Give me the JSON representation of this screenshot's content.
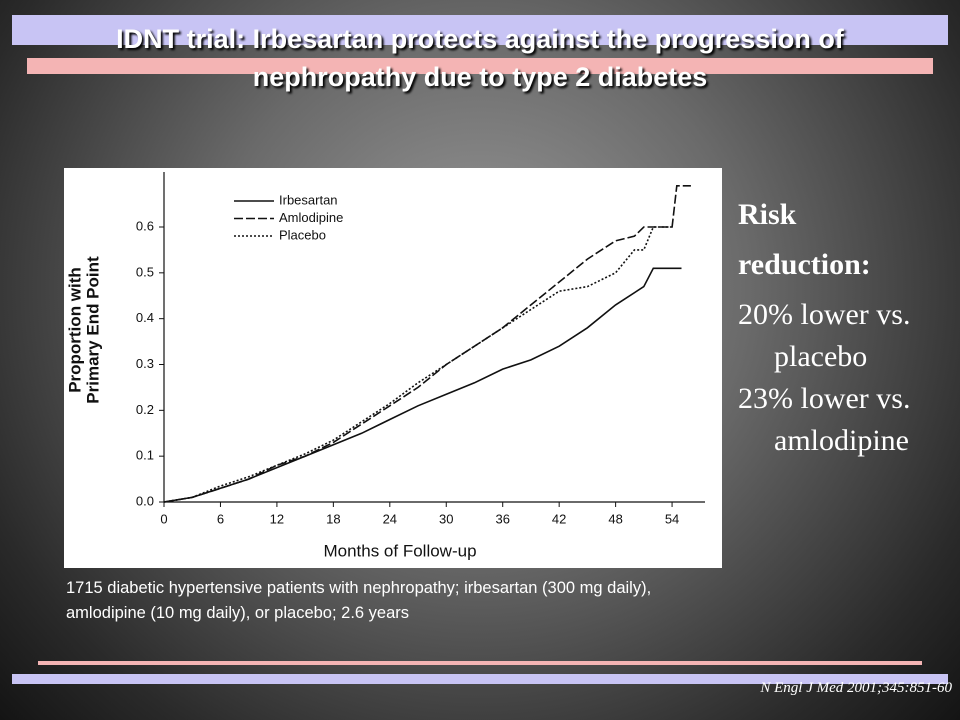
{
  "slide": {
    "title": "IDNT trial: Irbesartan protects against the progression of nephropathy due to type 2 diabetes",
    "caption": "1715 diabetic hypertensive patients with  nephropathy; irbesartan (300 mg daily), amlodipine  (10 mg daily), or placebo; 2.6 years",
    "side_heading": [
      "Risk",
      "reduction:"
    ],
    "side_points": [
      "20% lower vs. placebo",
      "23% lower vs. amlodipine"
    ],
    "citation": "N Engl J Med 2001;345:851-60"
  },
  "chart_data": {
    "type": "line",
    "xlabel": "Months of Follow-up",
    "ylabel": [
      "Proportion with",
      "Primary End Point"
    ],
    "xlim": [
      0,
      57.5
    ],
    "ylim": [
      0,
      0.72
    ],
    "xticks": [
      0,
      6,
      12,
      18,
      24,
      30,
      36,
      42,
      48,
      54
    ],
    "yticks": [
      {
        "value": 0,
        "label": "0.0"
      },
      0.1,
      0.2,
      0.3,
      0.4,
      0.5,
      0.6
    ],
    "legend": "upper left",
    "series": [
      {
        "name": "Irbesartan",
        "color": "#111111",
        "line_style": "solid",
        "x": [
          0,
          3,
          6,
          9,
          12,
          15,
          18,
          21,
          24,
          27,
          30,
          33,
          36,
          39,
          42,
          45,
          48,
          51,
          52,
          55
        ],
        "values": [
          0,
          0.01,
          0.03,
          0.05,
          0.075,
          0.1,
          0.125,
          0.15,
          0.18,
          0.21,
          0.235,
          0.26,
          0.29,
          0.31,
          0.34,
          0.38,
          0.43,
          0.47,
          0.51,
          0.51
        ]
      },
      {
        "name": "Amlodipine",
        "color": "#111111",
        "line_style": "dashed",
        "x": [
          0,
          3,
          6,
          9,
          12,
          15,
          18,
          21,
          24,
          27,
          30,
          33,
          36,
          39,
          42,
          45,
          48,
          50,
          51,
          54,
          54.5,
          56
        ],
        "values": [
          0,
          0.01,
          0.03,
          0.05,
          0.08,
          0.1,
          0.13,
          0.17,
          0.21,
          0.25,
          0.3,
          0.34,
          0.38,
          0.43,
          0.48,
          0.53,
          0.57,
          0.58,
          0.6,
          0.6,
          0.69,
          0.69
        ]
      },
      {
        "name": "Placebo",
        "color": "#111111",
        "line_style": "dotted",
        "x": [
          0,
          3,
          6,
          9,
          12,
          15,
          18,
          21,
          24,
          27,
          30,
          33,
          36,
          39,
          42,
          45,
          48,
          50,
          51,
          52,
          54
        ],
        "values": [
          0,
          0.01,
          0.035,
          0.055,
          0.08,
          0.105,
          0.135,
          0.175,
          0.215,
          0.26,
          0.3,
          0.34,
          0.38,
          0.42,
          0.46,
          0.47,
          0.5,
          0.55,
          0.55,
          0.6,
          0.6
        ]
      }
    ]
  }
}
